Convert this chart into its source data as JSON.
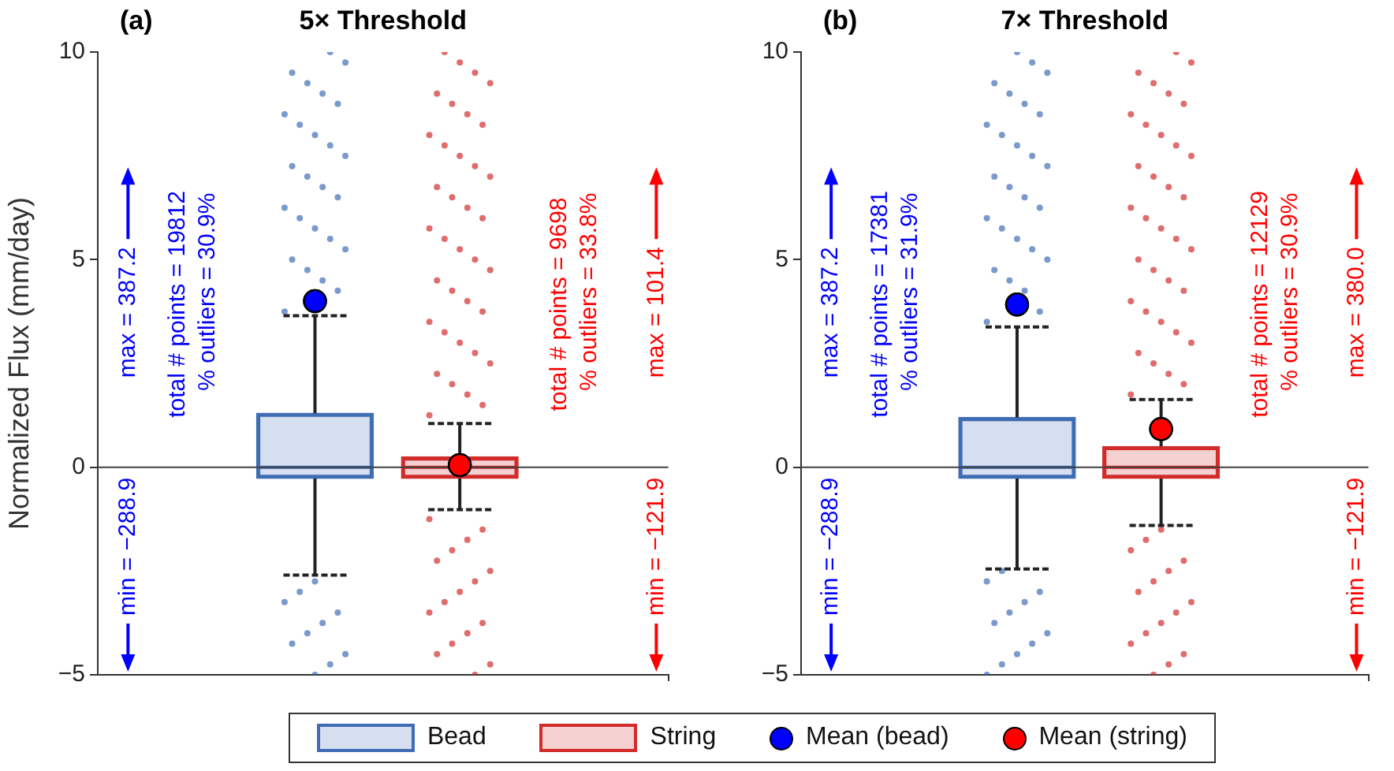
{
  "chart_data": [
    {
      "type": "box",
      "title": "5× Threshold",
      "subtitle": "(a)",
      "ylabel": "Normalized Flux (mm/day)",
      "categories": [
        null
      ],
      "ylim": [
        -5,
        10
      ],
      "yticks": [
        {
          "value": -5,
          "label": "−5"
        },
        0,
        5,
        10
      ],
      "tick_labels": "y",
      "legend": "bottom",
      "ref_lines": [
        {
          "axis": "y",
          "value": 0,
          "color": "#404040"
        }
      ],
      "series": [
        {
          "name": "Bead",
          "color": "#3f6db5",
          "boxes": [
            {
              "low": -2.6,
              "q1": -0.27,
              "median": 0,
              "q3": 1.3,
              "high": 3.65,
              "outliers": [
                3.75,
                4.25,
                4.5,
                4.75,
                5,
                5.25,
                5.5,
                5.75,
                6,
                6.25,
                6.5,
                6.75,
                7,
                7.25,
                7.5,
                7.75,
                8,
                8.25,
                8.5,
                8.75,
                9,
                9.25,
                9.5,
                9.75,
                10,
                -2.75,
                -3,
                -3.25,
                -3.5,
                -3.75,
                -4,
                -4.25,
                -4.5,
                -4.75,
                -5
              ]
            }
          ]
        },
        {
          "name": "String",
          "color": "#d22b2b",
          "boxes": [
            {
              "low": -1.02,
              "q1": -0.27,
              "median": 0,
              "q3": 0.25,
              "high": 1.05,
              "outliers": [
                1.25,
                1.5,
                1.75,
                2,
                2.25,
                2.5,
                2.75,
                3,
                3.25,
                3.5,
                3.75,
                4,
                4.25,
                4.5,
                4.75,
                5,
                5.25,
                5.5,
                5.75,
                6,
                6.25,
                6.5,
                6.75,
                7,
                7.25,
                7.5,
                7.75,
                8,
                8.25,
                8.5,
                8.75,
                9,
                9.25,
                9.5,
                9.75,
                10,
                -1.25,
                -1.5,
                -1.75,
                -2,
                -2.25,
                -2.5,
                -2.75,
                -3,
                -3.25,
                -3.5,
                -3.75,
                -4,
                -4.25,
                -4.5,
                -4.75,
                -5
              ]
            }
          ]
        },
        {
          "name": "Mean (bead)",
          "type": "scatter",
          "color": "#0000ff",
          "values": [
            4.0
          ]
        },
        {
          "name": "Mean (string)",
          "type": "scatter",
          "color": "#ff0000",
          "values": [
            0.05
          ]
        }
      ],
      "annotations": [
        "max = 387.2",
        "min = −288.9",
        "total # points = 19812",
        "% outliers = 30.9%",
        "total # points = 9698",
        "% outliers = 33.8%",
        "max = 101.4",
        "min = −121.9"
      ]
    },
    {
      "type": "box",
      "title": "7× Threshold",
      "subtitle": "(b)",
      "categories": [
        null
      ],
      "ylim": [
        -5,
        10
      ],
      "yticks": [
        {
          "value": -5,
          "label": "−5"
        },
        0,
        5,
        10
      ],
      "tick_labels": "y",
      "ref_lines": [
        {
          "axis": "y",
          "value": 0,
          "color": "#404040"
        }
      ],
      "series": [
        {
          "color": "#3f6db5",
          "boxes": [
            {
              "low": -2.45,
              "q1": -0.27,
              "median": 0,
              "q3": 1.2,
              "high": 3.38,
              "outliers": [
                3.5,
                3.75,
                4.25,
                4.5,
                4.75,
                5,
                5.25,
                5.5,
                5.75,
                6,
                6.25,
                6.5,
                6.75,
                7,
                7.25,
                7.5,
                7.75,
                8,
                8.25,
                8.5,
                8.75,
                9,
                9.25,
                9.5,
                9.75,
                10,
                -2.5,
                -2.75,
                -3,
                -3.25,
                -3.5,
                -3.75,
                -4,
                -4.25,
                -4.5,
                -4.75,
                -5
              ]
            }
          ]
        },
        {
          "color": "#d22b2b",
          "boxes": [
            {
              "low": -1.4,
              "q1": -0.27,
              "median": 0,
              "q3": 0.5,
              "high": 1.63,
              "outliers": [
                1.75,
                2,
                2.25,
                2.5,
                2.75,
                3,
                3.25,
                3.5,
                3.75,
                4,
                4.25,
                4.5,
                4.75,
                5,
                5.25,
                5.5,
                5.75,
                6,
                6.25,
                6.5,
                6.75,
                7,
                7.25,
                7.5,
                7.75,
                8,
                8.25,
                8.5,
                8.75,
                9,
                9.25,
                9.5,
                9.75,
                10,
                -1.5,
                -1.75,
                -2,
                -2.25,
                -2.5,
                -2.75,
                -3,
                -3.25,
                -3.5,
                -3.75,
                -4,
                -4.25,
                -4.5,
                -4.75,
                -5
              ]
            }
          ]
        },
        {
          "type": "scatter",
          "color": "#0000ff",
          "values": [
            3.92
          ]
        },
        {
          "type": "scatter",
          "color": "#ff0000",
          "values": [
            0.92
          ]
        }
      ],
      "annotations": [
        "max = 387.2",
        "min = −288.9",
        "total # points = 17381",
        "% outliers = 31.9%",
        "total # points = 12129",
        "% outliers = 30.9%",
        "max = 380.0",
        "min = −121.9"
      ]
    }
  ]
}
